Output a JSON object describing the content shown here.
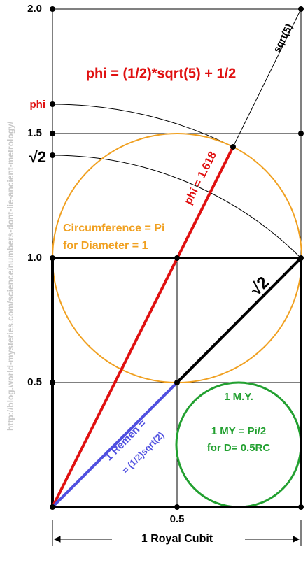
{
  "title": "phi = (1/2)*sqrt(5) + 1/2",
  "y_labels": {
    "y20": "2.0",
    "y15": "1.5",
    "y10": "1.0",
    "y05": "0.5",
    "phi": "phi",
    "sqrt2": "√2"
  },
  "x_label": "0.5",
  "cubit_label": "1 Royal Cubit",
  "sqrt5_label": "sqrt(5)",
  "phi_line_label": "phi = 1.618",
  "diag_label": "√2",
  "circle_text": [
    "Circumference = Pi",
    "for Diameter = 1"
  ],
  "remen_text": [
    "1 Remen =",
    "= (1/2)sqrt(2)"
  ],
  "my_text": {
    "title": "1 M.Y.",
    "lines": [
      "1 MY = Pi/2",
      "for D= 0.5RC"
    ]
  },
  "watermark": "http://blog.world-mysteries.com/science/numbers-dont-lie-ancient-metrology/"
}
